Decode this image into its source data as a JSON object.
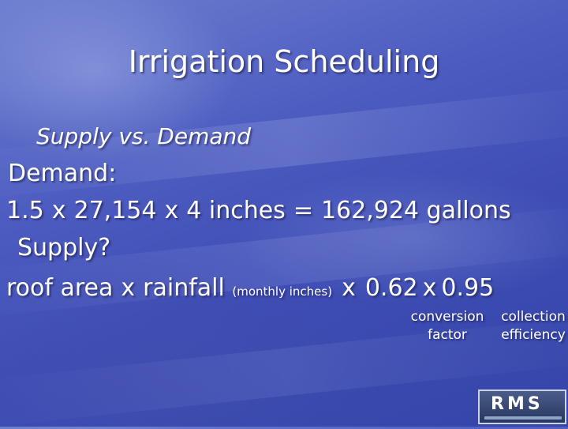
{
  "slide": {
    "title": "Irrigation Scheduling",
    "subtitle": "Supply vs. Demand",
    "demand_label": "Demand:",
    "demand_equation": {
      "term1": "1.5",
      "op1": "x",
      "term2": "27,154",
      "op2": "x",
      "term3": "4 inches",
      "equals": "=",
      "result": "162,924 gallons"
    },
    "supply_label": "Supply?",
    "supply_equation": {
      "term1": "roof area",
      "op1": "x",
      "term2": "rainfall",
      "term2_note": "(monthly inches)",
      "op2": "x",
      "term3": "0.62",
      "op3": "x",
      "term4": "0.95"
    },
    "conversion_label": "conversion factor",
    "collection_label": "collection efficiency"
  },
  "logo": {
    "text": "RMS"
  }
}
